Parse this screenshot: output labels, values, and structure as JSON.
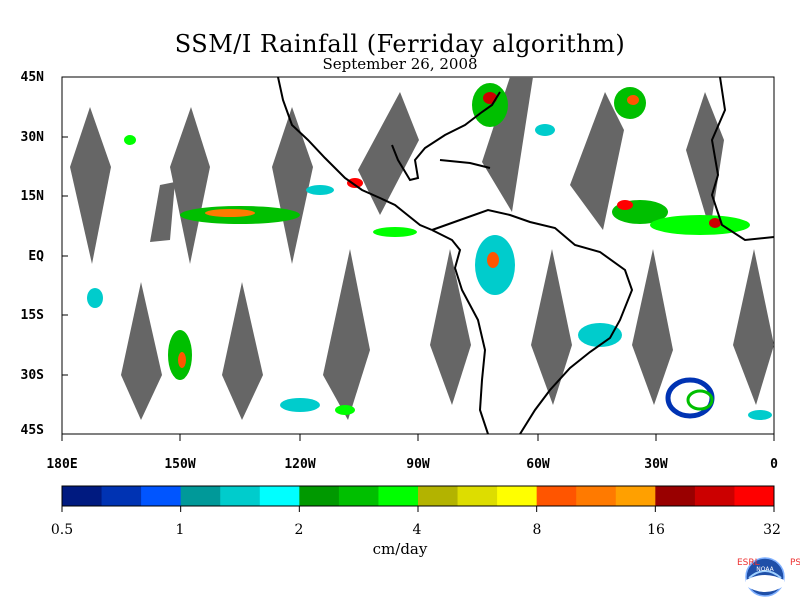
{
  "title": "SSM/I Rainfall (Ferriday algorithm)",
  "subtitle": "September 26, 2008",
  "lat_labels": [
    "45N",
    "30N",
    "15N",
    "EQ",
    "15S",
    "30S",
    "45S"
  ],
  "lon_labels": [
    "180E",
    "150W",
    "120W",
    "90W",
    "60W",
    "30W",
    "0"
  ],
  "colorbar": {
    "colors": [
      "#001a80",
      "#0033b3",
      "#0055ff",
      "#009999",
      "#00cccc",
      "#00ffff",
      "#009900",
      "#00bf00",
      "#00ff00",
      "#b3b300",
      "#dddd00",
      "#ffff00",
      "#ff5500",
      "#ff7a00",
      "#ffa000",
      "#990000",
      "#cc0000",
      "#ff0000"
    ],
    "tick_labels": [
      "0.5",
      "1",
      "2",
      "4",
      "8",
      "16",
      "32"
    ],
    "units": "cm/day"
  },
  "logo": {
    "left_letters": "ESRL",
    "right_letters": "PSD",
    "center": "NOAA"
  },
  "chart_data": {
    "type": "heatmap",
    "title": "SSM/I Rainfall (Ferriday algorithm)",
    "subtitle": "September 26, 2008",
    "xlabel": "",
    "ylabel": "",
    "xlim": [
      -180,
      0
    ],
    "ylim": [
      -45,
      45
    ],
    "colorbar_levels": [
      0.5,
      1,
      2,
      4,
      8,
      16,
      32
    ],
    "colorbar_units": "cm/day",
    "grid": false,
    "missing_data_color": "#666666"
  }
}
